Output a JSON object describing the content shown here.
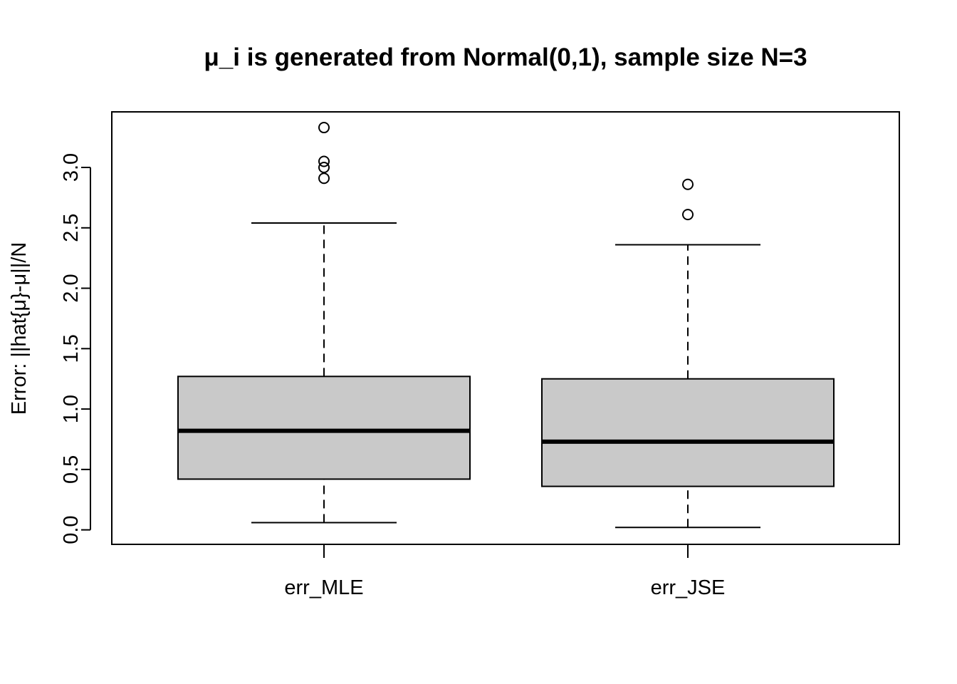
{
  "chart_data": {
    "type": "box",
    "title": "μ_i is generated from Normal(0,1), sample size N=3",
    "xlabel": "",
    "ylabel": "Error: ||hat{μ}-μ||/N",
    "ylim": [
      -0.12,
      3.46
    ],
    "yticks": [
      0.0,
      0.5,
      1.0,
      1.5,
      2.0,
      2.5,
      3.0
    ],
    "ytick_labels": [
      "0.0",
      "0.5",
      "1.0",
      "1.5",
      "2.0",
      "2.5",
      "3.0"
    ],
    "grid": false,
    "legend": "none",
    "box_fill": "#c9c9c9",
    "categories": [
      "err_MLE",
      "err_JSE"
    ],
    "boxes": [
      {
        "name": "err_MLE",
        "whisker_low": 0.06,
        "q1": 0.42,
        "median": 0.82,
        "q3": 1.27,
        "whisker_high": 2.54,
        "outliers": [
          2.91,
          3.0,
          3.05,
          3.33
        ]
      },
      {
        "name": "err_JSE",
        "whisker_low": 0.02,
        "q1": 0.36,
        "median": 0.73,
        "q3": 1.25,
        "whisker_high": 2.36,
        "outliers": [
          2.61,
          2.86
        ]
      }
    ]
  }
}
